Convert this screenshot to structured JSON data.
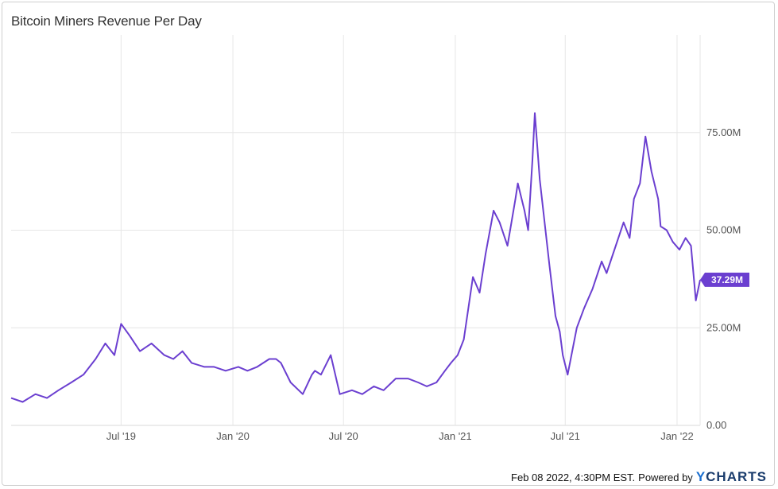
{
  "title": "Bitcoin Miners Revenue Per Day",
  "footer": {
    "timestamp": "Feb 08 2022, 4:30PM EST.",
    "powered_by": "Powered by",
    "brand_y": "Y",
    "brand_rest": "CHARTS"
  },
  "colors": {
    "line": "#6b3fd0",
    "badge": "#6b3fd0",
    "grid": "#e6e6e6",
    "axis_text": "#555555"
  },
  "chart_data": {
    "type": "line",
    "title": "Bitcoin Miners Revenue Per Day",
    "unit": "M USD",
    "x_range": [
      "2019-01-01",
      "2022-02-08"
    ],
    "ylim": [
      0,
      100
    ],
    "grid": true,
    "y_ticks": [
      {
        "value": 0,
        "label": "0.00"
      },
      {
        "value": 25,
        "label": "25.00M"
      },
      {
        "value": 50,
        "label": "50.00M"
      },
      {
        "value": 75,
        "label": "75.00M"
      }
    ],
    "x_ticks": [
      {
        "date": "2019-07-01",
        "label": "Jul '19"
      },
      {
        "date": "2020-01-01",
        "label": "Jan '20"
      },
      {
        "date": "2020-07-01",
        "label": "Jul '20"
      },
      {
        "date": "2021-01-01",
        "label": "Jan '21"
      },
      {
        "date": "2021-07-01",
        "label": "Jul '21"
      },
      {
        "date": "2022-01-01",
        "label": "Jan '22"
      }
    ],
    "last_value": {
      "value": 37.29,
      "label": "37.29M"
    },
    "series": [
      {
        "x": [
          "2019-01-01",
          "2019-01-20",
          "2019-02-10",
          "2019-03-01",
          "2019-03-20",
          "2019-04-10",
          "2019-04-30",
          "2019-05-20",
          "2019-06-05",
          "2019-06-20",
          "2019-07-01",
          "2019-07-15",
          "2019-08-01",
          "2019-08-20",
          "2019-09-10",
          "2019-09-25",
          "2019-10-10",
          "2019-10-25",
          "2019-11-15",
          "2019-12-01",
          "2019-12-20",
          "2020-01-10",
          "2020-01-25",
          "2020-02-10",
          "2020-03-01",
          "2020-03-12",
          "2020-03-20",
          "2020-04-05",
          "2020-04-25",
          "2020-05-10",
          "2020-05-15",
          "2020-05-25",
          "2020-06-10",
          "2020-06-25",
          "2020-07-15",
          "2020-08-01",
          "2020-08-20",
          "2020-09-05",
          "2020-09-25",
          "2020-10-15",
          "2020-11-01",
          "2020-11-15",
          "2020-12-01",
          "2020-12-15",
          "2020-12-25",
          "2021-01-05",
          "2021-01-15",
          "2021-01-30",
          "2021-02-10",
          "2021-02-20",
          "2021-03-05",
          "2021-03-15",
          "2021-03-28",
          "2021-04-10",
          "2021-04-14",
          "2021-04-25",
          "2021-05-01",
          "2021-05-08",
          "2021-05-12",
          "2021-05-20",
          "2021-05-28",
          "2021-06-05",
          "2021-06-15",
          "2021-06-22",
          "2021-06-27",
          "2021-07-05",
          "2021-07-20",
          "2021-08-01",
          "2021-08-15",
          "2021-08-30",
          "2021-09-07",
          "2021-09-20",
          "2021-10-05",
          "2021-10-15",
          "2021-10-22",
          "2021-11-01",
          "2021-11-10",
          "2021-11-20",
          "2021-12-01",
          "2021-12-05",
          "2021-12-15",
          "2021-12-25",
          "2022-01-05",
          "2022-01-15",
          "2022-01-24",
          "2022-02-01",
          "2022-02-08"
        ],
        "y": [
          7,
          6,
          8,
          7,
          9,
          11,
          13,
          17,
          21,
          18,
          26,
          23,
          19,
          21,
          18,
          17,
          19,
          16,
          15,
          15,
          14,
          15,
          14,
          15,
          17,
          17,
          16,
          11,
          8,
          13,
          14,
          13,
          18,
          8,
          9,
          8,
          10,
          9,
          12,
          12,
          11,
          10,
          11,
          14,
          16,
          18,
          22,
          38,
          34,
          44,
          55,
          52,
          46,
          58,
          62,
          55,
          50,
          68,
          80,
          63,
          52,
          41,
          28,
          24,
          18,
          13,
          25,
          30,
          35,
          42,
          39,
          45,
          52,
          48,
          58,
          62,
          74,
          65,
          58,
          51,
          50,
          47,
          45,
          48,
          46,
          32,
          37.29
        ]
      }
    ]
  }
}
